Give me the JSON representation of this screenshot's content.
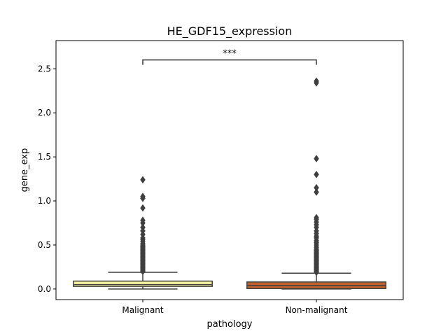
{
  "chart_data": {
    "type": "box",
    "title": "HE_GDF15_expression",
    "xlabel": "pathology",
    "ylabel": "gene_exp",
    "ylim": [
      -0.12,
      2.82
    ],
    "yticks": [
      0.0,
      0.5,
      1.0,
      1.5,
      2.0,
      2.5
    ],
    "ytick_labels": [
      "0.0",
      "0.5",
      "1.0",
      "1.5",
      "2.0",
      "2.5"
    ],
    "categories": [
      "Malignant",
      "Non-malignant"
    ],
    "boxes": [
      {
        "category": "Malignant",
        "color": "#f8f59e",
        "whisker_low": 0.0,
        "q1": 0.03,
        "median": 0.05,
        "q3": 0.09,
        "whisker_high": 0.19,
        "outliers": [
          0.2,
          0.21,
          0.22,
          0.23,
          0.24,
          0.25,
          0.26,
          0.27,
          0.28,
          0.29,
          0.3,
          0.31,
          0.32,
          0.33,
          0.34,
          0.35,
          0.36,
          0.37,
          0.38,
          0.39,
          0.4,
          0.41,
          0.42,
          0.43,
          0.44,
          0.45,
          0.46,
          0.47,
          0.48,
          0.49,
          0.5,
          0.52,
          0.54,
          0.56,
          0.58,
          0.62,
          0.66,
          0.7,
          0.75,
          0.78,
          0.92,
          1.03,
          1.05,
          1.24
        ]
      },
      {
        "category": "Non-malignant",
        "color": "#c0602a",
        "whisker_low": 0.0,
        "q1": 0.005,
        "median": 0.04,
        "q3": 0.08,
        "whisker_high": 0.18,
        "outliers": [
          0.19,
          0.2,
          0.21,
          0.22,
          0.23,
          0.24,
          0.25,
          0.26,
          0.27,
          0.28,
          0.29,
          0.3,
          0.31,
          0.32,
          0.33,
          0.34,
          0.35,
          0.36,
          0.37,
          0.38,
          0.39,
          0.4,
          0.41,
          0.42,
          0.43,
          0.44,
          0.45,
          0.47,
          0.49,
          0.51,
          0.53,
          0.55,
          0.58,
          0.6,
          0.63,
          0.66,
          0.7,
          0.73,
          0.76,
          0.79,
          0.81,
          1.1,
          1.15,
          1.3,
          1.48,
          2.34,
          2.36
        ]
      }
    ],
    "significance": {
      "from": "Malignant",
      "to": "Non-malignant",
      "y": 2.6,
      "label": "***"
    },
    "grid": false,
    "legend": "none"
  }
}
